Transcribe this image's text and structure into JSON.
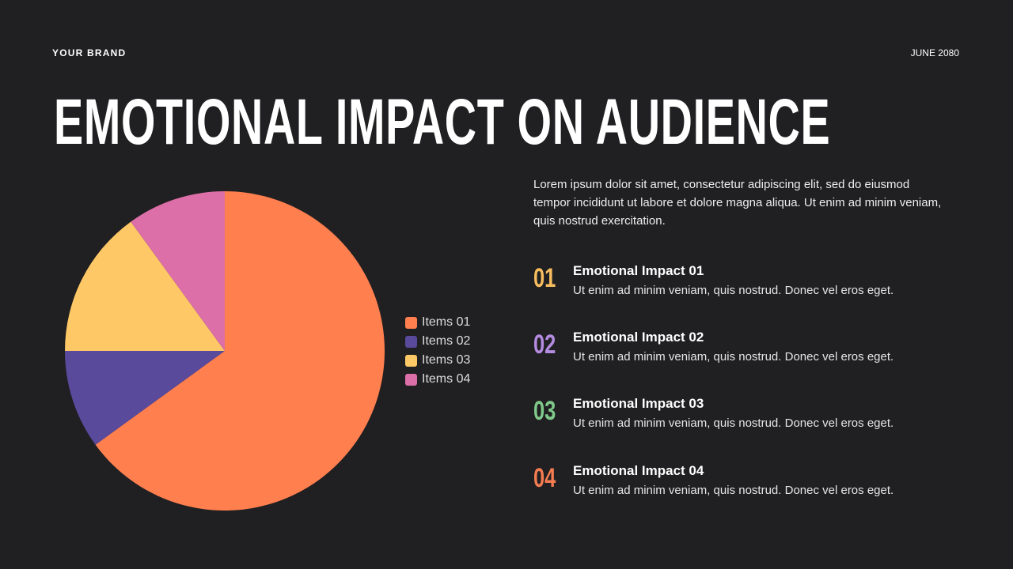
{
  "header": {
    "brand": "YOUR BRAND",
    "date": "JUNE 2080",
    "title": "EMOTIONAL IMPACT ON AUDIENCE"
  },
  "intro": "Lorem ipsum dolor sit amet, consectetur adipiscing elit, sed do eiusmod tempor incididunt ut labore et dolore magna aliqua. Ut enim ad minim veniam, quis nostrud exercitation.",
  "items": [
    {
      "num": "01",
      "title": "Emotional Impact 01",
      "desc": "Ut enim ad minim veniam, quis nostrud. Donec vel eros eget.",
      "color": "#f7bd5e"
    },
    {
      "num": "02",
      "title": "Emotional Impact 02",
      "desc": "Ut enim ad minim veniam, quis nostrud. Donec vel eros eget.",
      "color": "#b48be0"
    },
    {
      "num": "03",
      "title": "Emotional Impact 03",
      "desc": "Ut enim ad minim veniam, quis nostrud. Donec vel eros eget.",
      "color": "#7fc98a"
    },
    {
      "num": "04",
      "title": "Emotional Impact 04",
      "desc": "Ut enim ad minim veniam, quis nostrud. Donec vel eros eget.",
      "color": "#f47c50"
    }
  ],
  "chart_data": {
    "type": "pie",
    "categories": [
      "Items 01",
      "Items 02",
      "Items 03",
      "Items 04"
    ],
    "values": [
      65,
      10,
      15,
      10
    ],
    "colors": [
      "#ff7f4f",
      "#594a9c",
      "#ffc867",
      "#dd6fa8"
    ],
    "legend": "right",
    "start": "top",
    "direction": "clockwise"
  }
}
